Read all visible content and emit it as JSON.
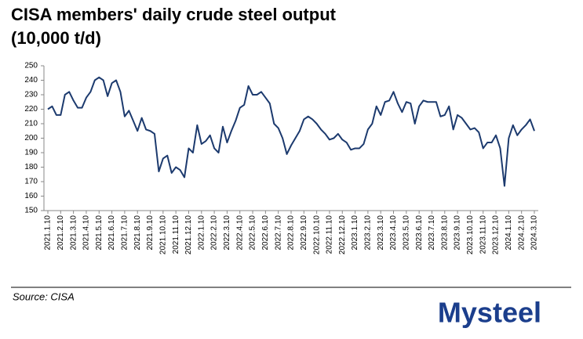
{
  "chart_data": {
    "type": "line",
    "title": "CISA members' daily crude steel output",
    "subtitle": "(10,000 t/d)",
    "source": "Source: CISA",
    "logo": "Mysteel",
    "categories": [
      "2021.1.10",
      null,
      null,
      "2021.2.10",
      null,
      null,
      "2021.3.10",
      null,
      null,
      "2021.4.10",
      null,
      null,
      "2021.5.10",
      null,
      null,
      "2021.6.10",
      null,
      null,
      "2021.7.10",
      null,
      null,
      "2021.8.10",
      null,
      null,
      "2021.9.10",
      null,
      null,
      "2021.10.10",
      null,
      null,
      "2021.11.10",
      null,
      null,
      "2021.12.10",
      null,
      null,
      "2022.1.10",
      null,
      null,
      "2022.2.10",
      null,
      null,
      "2022.3.10",
      null,
      null,
      "2022.4.10",
      null,
      null,
      "2022.5.10",
      null,
      null,
      "2022.6.10",
      null,
      null,
      "2022.7.10",
      null,
      null,
      "2022.8.10",
      null,
      null,
      "2022.9.10",
      null,
      null,
      "2022.10.10",
      null,
      null,
      "2022.11.10",
      null,
      null,
      "2022.12.10",
      null,
      null,
      "2023.1.10",
      null,
      null,
      "2023.2.10",
      null,
      null,
      "2023.3.10",
      null,
      null,
      "2023.4.10",
      null,
      null,
      "2023.5.10",
      null,
      null,
      "2023.6.10",
      null,
      null,
      "2023.7.10",
      null,
      null,
      "2023.8.10",
      null,
      null,
      "2023.9.10",
      null,
      null,
      "2023.10.10",
      null,
      null,
      "2023.11.10",
      null,
      null,
      "2023.12.10",
      null,
      null,
      "2024.1.10",
      null,
      null,
      "2024.2.10",
      null,
      null,
      "2024.3.10"
    ],
    "series": [
      {
        "name": "Daily crude steel output",
        "color": "#1c3a6e",
        "values": [
          220,
          222,
          216,
          216,
          230,
          232,
          226,
          221,
          221,
          228,
          232,
          240,
          242,
          240,
          229,
          238,
          240,
          232,
          215,
          219,
          212,
          205,
          214,
          206,
          205,
          203,
          177,
          186,
          188,
          176,
          180,
          178,
          173,
          193,
          190,
          209,
          196,
          198,
          202,
          193,
          190,
          208,
          197,
          205,
          212,
          221,
          223,
          236,
          230,
          230,
          232,
          228,
          224,
          210,
          207,
          200,
          189,
          195,
          200,
          205,
          213,
          215,
          213,
          210,
          206,
          203,
          199,
          200,
          203,
          199,
          197,
          192,
          193,
          193,
          196,
          206,
          210,
          222,
          216,
          225,
          226,
          232,
          224,
          218,
          225,
          224,
          210,
          222,
          226,
          225,
          225,
          225,
          215,
          216,
          222,
          206,
          216,
          214,
          210,
          206,
          207,
          204,
          193,
          197,
          197,
          202,
          193,
          167,
          200,
          209,
          202,
          206,
          209,
          213,
          205
        ]
      }
    ],
    "ylim": [
      150,
      250
    ],
    "yticks": [
      150,
      160,
      170,
      180,
      190,
      200,
      210,
      220,
      230,
      240,
      250
    ]
  }
}
